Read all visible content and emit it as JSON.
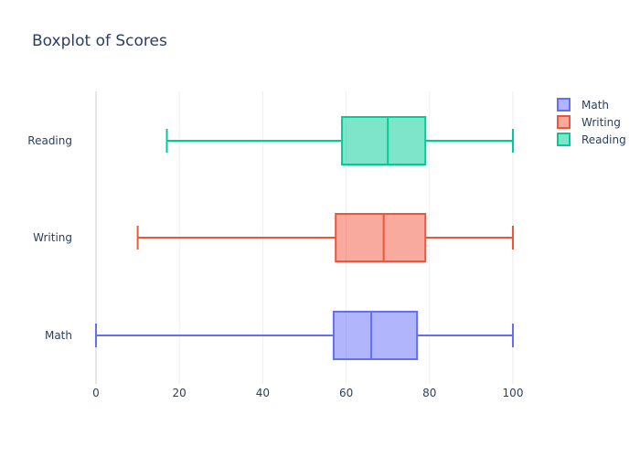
{
  "chart_data": {
    "type": "box",
    "title": "Boxplot of Scores",
    "orientation": "horizontal",
    "xlim": [
      -3,
      103
    ],
    "x_ticks": [
      0,
      20,
      40,
      60,
      80,
      100
    ],
    "series": [
      {
        "name": "Math",
        "min": 0,
        "q1": 57,
        "median": 66,
        "q3": 77,
        "max": 100,
        "color": "#636efa"
      },
      {
        "name": "Writing",
        "min": 10,
        "q1": 57.5,
        "median": 69,
        "q3": 79,
        "max": 100,
        "color": "#ef553b"
      },
      {
        "name": "Reading",
        "min": 17,
        "q1": 59,
        "median": 70,
        "q3": 79,
        "max": 100,
        "color": "#00cc96"
      }
    ],
    "legend": {
      "position": "top-right",
      "entries": [
        "Math",
        "Writing",
        "Reading"
      ]
    },
    "grid": true
  }
}
